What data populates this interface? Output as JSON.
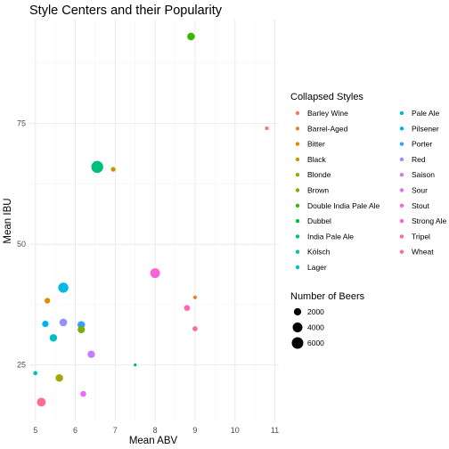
{
  "chart_data": {
    "type": "scatter",
    "title": "Style Centers and their Popularity",
    "xlabel": "Mean ABV",
    "ylabel": "Mean IBU",
    "xlim": [
      4.85,
      11.1
    ],
    "ylim": [
      13.5,
      96.5
    ],
    "x_ticks": [
      5,
      6,
      7,
      8,
      9,
      10,
      11
    ],
    "y_ticks": [
      25,
      50,
      75
    ],
    "grid": true,
    "legend_placement": "right",
    "color_legend": {
      "title": "Collapsed Styles",
      "entries": [
        {
          "name": "Barley Wine",
          "color": "#F8766D"
        },
        {
          "name": "Barrel-Aged",
          "color": "#EB8335"
        },
        {
          "name": "Bitter",
          "color": "#D89000"
        },
        {
          "name": "Black",
          "color": "#BF9B00"
        },
        {
          "name": "Blonde",
          "color": "#A3A500"
        },
        {
          "name": "Brown",
          "color": "#7CAE00"
        },
        {
          "name": "Double India Pale Ale",
          "color": "#39B600"
        },
        {
          "name": "Dubbel",
          "color": "#00BB4E"
        },
        {
          "name": "India Pale Ale",
          "color": "#00BF7D"
        },
        {
          "name": "Kölsch",
          "color": "#00C1A3"
        },
        {
          "name": "Lager",
          "color": "#00BFC4"
        },
        {
          "name": "Pale Ale",
          "color": "#00BAE0"
        },
        {
          "name": "Pilsener",
          "color": "#00B0F6"
        },
        {
          "name": "Porter",
          "color": "#35A2FF"
        },
        {
          "name": "Red",
          "color": "#9590FF"
        },
        {
          "name": "Saison",
          "color": "#C77CFF"
        },
        {
          "name": "Sour",
          "color": "#E76BF3"
        },
        {
          "name": "Stout",
          "color": "#FA62DB"
        },
        {
          "name": "Strong Ale",
          "color": "#FF62BC"
        },
        {
          "name": "Tripel",
          "color": "#FF6A98"
        },
        {
          "name": "Wheat",
          "color": "#FF6C91"
        }
      ]
    },
    "size_legend": {
      "title": "Number of Beers",
      "entries": [
        {
          "label": "2000",
          "value": 2000
        },
        {
          "label": "4000",
          "value": 4000
        },
        {
          "label": "6000",
          "value": 6000
        }
      ]
    },
    "points": [
      {
        "style": "Barley Wine",
        "x": 10.8,
        "y": 74,
        "count": 300
      },
      {
        "style": "Barrel-Aged",
        "x": 9.0,
        "y": 39,
        "count": 300
      },
      {
        "style": "Bitter",
        "x": 5.3,
        "y": 38.3,
        "count": 1000
      },
      {
        "style": "Black",
        "x": 6.95,
        "y": 65.5,
        "count": 600
      },
      {
        "style": "Blonde",
        "x": 5.6,
        "y": 22.3,
        "count": 2100
      },
      {
        "style": "Brown",
        "x": 6.15,
        "y": 32.3,
        "count": 1900
      },
      {
        "style": "Double India Pale Ale",
        "x": 8.9,
        "y": 93,
        "count": 2200
      },
      {
        "style": "Dubbel",
        "x": 7.5,
        "y": 25,
        "count": 100
      },
      {
        "style": "India Pale Ale",
        "x": 6.55,
        "y": 66,
        "count": 6400
      },
      {
        "style": "Kölsch",
        "x": 5.0,
        "y": 23.3,
        "count": 400
      },
      {
        "style": "Lager",
        "x": 5.45,
        "y": 30.6,
        "count": 2100
      },
      {
        "style": "Pale Ale",
        "x": 5.7,
        "y": 41,
        "count": 4400
      },
      {
        "style": "Pilsener",
        "x": 5.25,
        "y": 33.5,
        "count": 1400
      },
      {
        "style": "Porter",
        "x": 6.15,
        "y": 33.3,
        "count": 2100
      },
      {
        "style": "Red",
        "x": 5.7,
        "y": 33.8,
        "count": 2200
      },
      {
        "style": "Saison",
        "x": 6.4,
        "y": 27.2,
        "count": 2000
      },
      {
        "style": "Sour",
        "x": 6.2,
        "y": 19,
        "count": 1100
      },
      {
        "style": "Stout",
        "x": 8.0,
        "y": 44,
        "count": 4000
      },
      {
        "style": "Strong Ale",
        "x": 8.8,
        "y": 36.8,
        "count": 1100
      },
      {
        "style": "Tripel",
        "x": 9.0,
        "y": 32.5,
        "count": 700
      },
      {
        "style": "Wheat",
        "x": 5.15,
        "y": 17.3,
        "count": 3100
      }
    ]
  }
}
